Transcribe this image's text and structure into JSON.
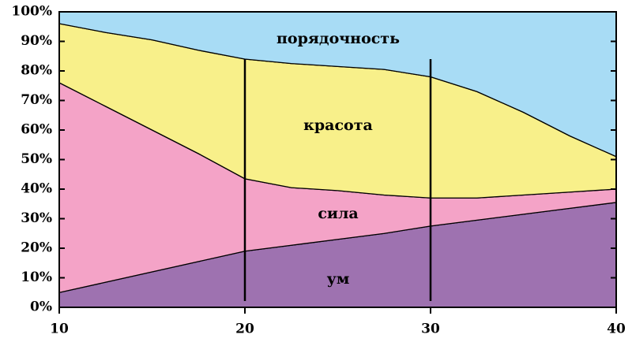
{
  "chart_data": {
    "type": "stacked-area",
    "x": [
      10,
      12.5,
      15,
      17.5,
      20,
      22.5,
      25,
      27.5,
      30,
      32.5,
      35,
      37.5,
      40
    ],
    "series": [
      {
        "name": "ум",
        "color": "#9e72b0",
        "values": [
          5,
          8.5,
          12,
          15.5,
          19,
          21,
          23,
          25,
          27.5,
          29.5,
          31.5,
          33.5,
          35.5
        ]
      },
      {
        "name": "сила",
        "color": "#f4a3c7",
        "values": [
          71,
          59.5,
          48,
          36.5,
          24.5,
          19.5,
          16.5,
          13,
          9.5,
          7.5,
          6.5,
          5.5,
          4.5
        ]
      },
      {
        "name": "красота",
        "color": "#f8f08a",
        "values": [
          20,
          25,
          30.5,
          35,
          40.5,
          42,
          42,
          42.5,
          41,
          36,
          28,
          19,
          11
        ]
      },
      {
        "name": "порядочность",
        "color": "#a8dcf5",
        "values": [
          4,
          7,
          9.5,
          13,
          16,
          17.5,
          18.5,
          19.5,
          22,
          27,
          34,
          42,
          49
        ]
      }
    ],
    "xlim": [
      10,
      40
    ],
    "xticks": [
      10,
      20,
      30,
      40
    ],
    "ylim": [
      0,
      100
    ],
    "yticks": [
      {
        "value": 0,
        "label": "0%"
      },
      {
        "value": 10,
        "label": "10%"
      },
      {
        "value": 20,
        "label": "20%"
      },
      {
        "value": 30,
        "label": "30%"
      },
      {
        "value": 40,
        "label": "40%"
      },
      {
        "value": 50,
        "label": "50%"
      },
      {
        "value": 60,
        "label": "60%"
      },
      {
        "value": 70,
        "label": "70%"
      },
      {
        "value": 80,
        "label": "80%"
      },
      {
        "value": 90,
        "label": "90%"
      },
      {
        "value": 100,
        "label": "100%"
      }
    ],
    "vlines": [
      20,
      30
    ]
  }
}
